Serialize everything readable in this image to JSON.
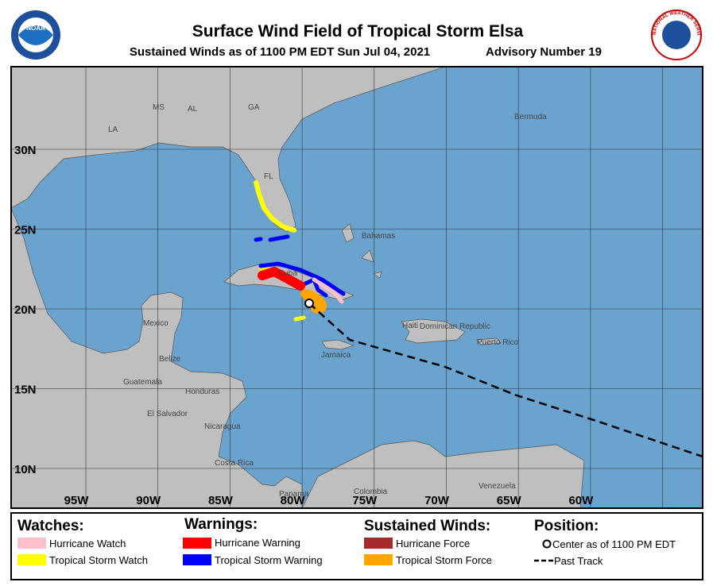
{
  "header": {
    "title": "Surface Wind Field of Tropical Storm Elsa",
    "subtitle": "Sustained Winds as of 1100 PM EDT Sun Jul 04, 2021",
    "advisory": "Advisory Number 19",
    "noaa_logo": "NOAA",
    "nws_logo": "NATIONAL WEATHER SERVICE"
  },
  "map": {
    "latitude_labels": [
      "30N",
      "25N",
      "20N",
      "15N",
      "10N"
    ],
    "longitude_labels": [
      "95W",
      "90W",
      "85W",
      "80W",
      "75W",
      "70W",
      "65W",
      "60W"
    ],
    "places": [
      "MS",
      "AL",
      "GA",
      "LA",
      "FL",
      "Bermuda",
      "Bahamas",
      "Cuba",
      "Mexico",
      "Belize",
      "Guatemala",
      "Honduras",
      "El Salvador",
      "Nicaragua",
      "Costa Rica",
      "Panama",
      "Colombia",
      "Venezuela",
      "Jamaica",
      "Haiti",
      "Dominican Republic",
      "Puerto Rico"
    ]
  },
  "legend": {
    "watches": {
      "heading": "Watches:",
      "items": [
        "Hurricane Watch",
        "Tropical Storm Watch"
      ]
    },
    "warnings": {
      "heading": "Warnings:",
      "items": [
        "Hurricane Warning",
        "Tropical Storm Warning"
      ]
    },
    "winds": {
      "heading": "Sustained Winds:",
      "items": [
        "Hurricane Force",
        "Tropical Storm Force"
      ]
    },
    "position": {
      "heading": "Position:",
      "items": [
        "Center as of 1100 PM EDT",
        "Past Track"
      ]
    }
  }
}
